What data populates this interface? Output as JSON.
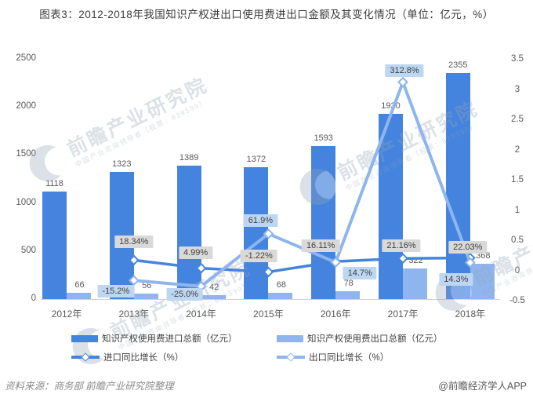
{
  "title": "图表3：2012-2018年我国知识产权进出口使用费进出口金额及其变化情况（单位：亿元，%）",
  "watermark": {
    "brand_text": "前瞻产业研究院",
    "sub_text": "中国产业咨询领导者（股票：839599）"
  },
  "chart_data": {
    "type": "bar+line combo",
    "categories": [
      "2012年",
      "2013年",
      "2014年",
      "2015年",
      "2016年",
      "2017年",
      "2018年"
    ],
    "series": [
      {
        "name": "知识产权使用费进口总额（亿元）",
        "type": "bar",
        "axis": "left",
        "color": "#4584DE",
        "values": [
          1118,
          1323,
          1389,
          1372,
          1593,
          1930,
          2355
        ]
      },
      {
        "name": "知识产权使用费出口总额（亿元）",
        "type": "bar",
        "axis": "left",
        "color": "#8FB5EE",
        "values": [
          66,
          56,
          42,
          68,
          78,
          322,
          368
        ]
      },
      {
        "name": "进口同比增长（%）",
        "type": "line",
        "axis": "right",
        "color": "#4584DE",
        "values": [
          null,
          18.34,
          4.99,
          -1.22,
          16.11,
          21.16,
          22.03
        ],
        "labels": [
          null,
          "18.34%",
          "4.99%",
          "-1.22%",
          "16.11%",
          "21.16%",
          "22.03%"
        ],
        "label_style": "gray"
      },
      {
        "name": "出口同比增长（%）",
        "type": "line",
        "axis": "right",
        "color": "#8FB5EE",
        "values": [
          null,
          -15.2,
          -25.0,
          61.9,
          14.7,
          312.8,
          14.3
        ],
        "labels": [
          null,
          "-15.2%",
          "-25.0%",
          "61.9%",
          "14.7%",
          "312.8%",
          "14.3%"
        ],
        "label_style": "blue"
      }
    ],
    "left_axis": {
      "min": 0,
      "max": 2500,
      "ticks": [
        "0",
        "500",
        "1000",
        "1500",
        "2000",
        "2500"
      ]
    },
    "right_axis": {
      "min": -0.5,
      "max": 3.5,
      "ticks": [
        "-0.5",
        "0",
        "0.5",
        "1",
        "1.5",
        "2",
        "2.5",
        "3",
        "3.5"
      ]
    },
    "grid": "off",
    "legend_position": "bottom"
  },
  "footer": {
    "source": "资料来源：商务部 前瞻产业研究院整理",
    "credit": "@前瞻经济学人APP"
  }
}
